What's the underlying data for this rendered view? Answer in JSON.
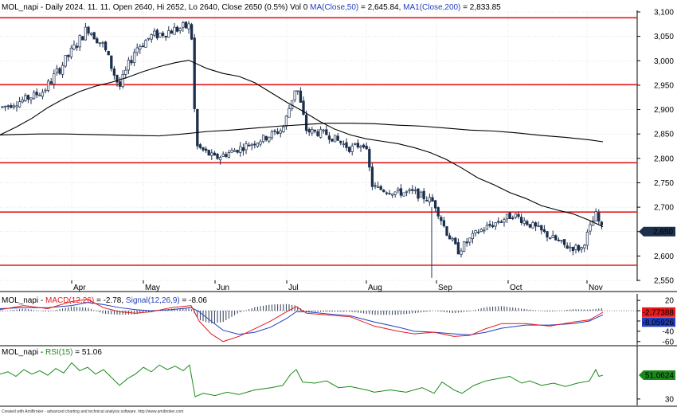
{
  "chart_data": [
    {
      "type": "candlestick",
      "pane": "price",
      "header": {
        "symbol": "MOL_napi",
        "info": " - Daily 2024. 11. 11. Open 2640, Hi 2652, Lo 2640, Close 2650 (0.5%) Vol 0 ",
        "ma50_label": "MA(Close,50)",
        "ma50_value": " = 2,645.84, ",
        "ma200_label": "MA1(Close,200)",
        "ma200_value": " = 2,833.85"
      },
      "y_ticks": [
        "3,100",
        "3,050",
        "3,000",
        "2,950",
        "2,900",
        "2,850",
        "2,800",
        "2,750",
        "2,700",
        "2,650",
        "2,600",
        "2,550"
      ],
      "ylim": [
        2550,
        3100
      ],
      "month_labels": [
        "Apr",
        "May",
        "Jun",
        "Jul",
        "Aug",
        "Sep",
        "Oct",
        "Nov"
      ],
      "last_price_label": "2,650",
      "horizontal_levels": [
        3088,
        2951,
        2791,
        2690,
        2581
      ],
      "ma50_points": [
        [
          0,
          2848
        ],
        [
          20,
          2864
        ],
        [
          40,
          2882
        ],
        [
          60,
          2904
        ],
        [
          80,
          2922
        ],
        [
          100,
          2937
        ],
        [
          120,
          2948
        ],
        [
          140,
          2956
        ],
        [
          160,
          2966
        ],
        [
          180,
          2978
        ],
        [
          200,
          2988
        ],
        [
          220,
          2996
        ],
        [
          237,
          3001
        ],
        [
          260,
          2984
        ],
        [
          280,
          2974
        ],
        [
          300,
          2968
        ],
        [
          320,
          2955
        ],
        [
          340,
          2935
        ],
        [
          360,
          2915
        ],
        [
          380,
          2897
        ],
        [
          400,
          2877
        ],
        [
          420,
          2860
        ],
        [
          440,
          2848
        ],
        [
          460,
          2840
        ],
        [
          480,
          2835
        ],
        [
          500,
          2830
        ],
        [
          520,
          2822
        ],
        [
          540,
          2812
        ],
        [
          560,
          2798
        ],
        [
          580,
          2780
        ],
        [
          600,
          2760
        ],
        [
          620,
          2746
        ],
        [
          640,
          2730
        ],
        [
          660,
          2718
        ],
        [
          680,
          2703
        ],
        [
          700,
          2694
        ],
        [
          720,
          2686
        ],
        [
          740,
          2673
        ],
        [
          757,
          2660
        ]
      ],
      "ma200_points": [
        [
          0,
          2848
        ],
        [
          20,
          2849
        ],
        [
          50,
          2850
        ],
        [
          80,
          2850
        ],
        [
          110,
          2849
        ],
        [
          140,
          2848
        ],
        [
          170,
          2847
        ],
        [
          200,
          2846
        ],
        [
          230,
          2850
        ],
        [
          260,
          2855
        ],
        [
          290,
          2858
        ],
        [
          320,
          2862
        ],
        [
          350,
          2866
        ],
        [
          380,
          2869
        ],
        [
          410,
          2872
        ],
        [
          440,
          2872
        ],
        [
          470,
          2871
        ],
        [
          500,
          2868
        ],
        [
          530,
          2866
        ],
        [
          560,
          2862
        ],
        [
          590,
          2858
        ],
        [
          620,
          2856
        ],
        [
          650,
          2852
        ],
        [
          680,
          2847
        ],
        [
          710,
          2843
        ],
        [
          740,
          2838
        ],
        [
          757,
          2834
        ]
      ],
      "candles_seed": 7,
      "candles_anchors": [
        [
          3,
          2905
        ],
        [
          30,
          2920
        ],
        [
          55,
          2938
        ],
        [
          80,
          2996
        ],
        [
          95,
          3031
        ],
        [
          110,
          3068
        ],
        [
          130,
          3030
        ],
        [
          150,
          2945
        ],
        [
          170,
          3025
        ],
        [
          190,
          3050
        ],
        [
          215,
          3062
        ],
        [
          240,
          3072
        ],
        [
          246,
          2826
        ],
        [
          270,
          2800
        ],
        [
          300,
          2820
        ],
        [
          330,
          2840
        ],
        [
          355,
          2860
        ],
        [
          372,
          2951
        ],
        [
          385,
          2856
        ],
        [
          410,
          2850
        ],
        [
          440,
          2820
        ],
        [
          458,
          2832
        ],
        [
          468,
          2740
        ],
        [
          500,
          2730
        ],
        [
          520,
          2730
        ],
        [
          545,
          2710
        ],
        [
          560,
          2651
        ],
        [
          575,
          2610
        ],
        [
          600,
          2650
        ],
        [
          625,
          2670
        ],
        [
          645,
          2685
        ],
        [
          660,
          2670
        ],
        [
          690,
          2640
        ],
        [
          710,
          2620
        ],
        [
          730,
          2615
        ],
        [
          748,
          2685
        ],
        [
          757,
          2650
        ]
      ]
    },
    {
      "type": "macd",
      "pane": "macd",
      "header": {
        "symbol": "MOL_napi",
        "macd_label": "MACD(12,26)",
        "macd_value": " = -2.78, ",
        "signal_label": "Signal(12,26,9)",
        "signal_value": " = -8.06"
      },
      "y_ticks": [
        "20",
        "0",
        "-20",
        "-40",
        "-60"
      ],
      "ylim": [
        -65,
        28
      ],
      "value_labels": [
        "-2.77388",
        "-8.05926"
      ],
      "macd_points": [
        [
          0,
          2
        ],
        [
          30,
          10
        ],
        [
          60,
          4
        ],
        [
          90,
          18
        ],
        [
          110,
          22
        ],
        [
          130,
          6
        ],
        [
          150,
          -2
        ],
        [
          170,
          -5
        ],
        [
          190,
          -2
        ],
        [
          215,
          6
        ],
        [
          240,
          10
        ],
        [
          250,
          -20
        ],
        [
          265,
          -45
        ],
        [
          280,
          -60
        ],
        [
          300,
          -50
        ],
        [
          320,
          -35
        ],
        [
          340,
          -20
        ],
        [
          360,
          -2
        ],
        [
          372,
          8
        ],
        [
          385,
          -5
        ],
        [
          410,
          -8
        ],
        [
          440,
          -12
        ],
        [
          470,
          -30
        ],
        [
          500,
          -40
        ],
        [
          520,
          -45
        ],
        [
          545,
          -42
        ],
        [
          570,
          -50
        ],
        [
          590,
          -48
        ],
        [
          610,
          -35
        ],
        [
          630,
          -25
        ],
        [
          660,
          -25
        ],
        [
          690,
          -30
        ],
        [
          720,
          -22
        ],
        [
          740,
          -18
        ],
        [
          757,
          -3
        ]
      ],
      "signal_points": [
        [
          0,
          4
        ],
        [
          30,
          6
        ],
        [
          60,
          6
        ],
        [
          90,
          10
        ],
        [
          110,
          16
        ],
        [
          130,
          12
        ],
        [
          150,
          6
        ],
        [
          170,
          2
        ],
        [
          190,
          0
        ],
        [
          215,
          2
        ],
        [
          240,
          6
        ],
        [
          250,
          -2
        ],
        [
          265,
          -20
        ],
        [
          280,
          -38
        ],
        [
          300,
          -46
        ],
        [
          320,
          -42
        ],
        [
          340,
          -32
        ],
        [
          360,
          -15
        ],
        [
          372,
          -2
        ],
        [
          385,
          -2
        ],
        [
          410,
          -6
        ],
        [
          440,
          -10
        ],
        [
          470,
          -22
        ],
        [
          500,
          -32
        ],
        [
          520,
          -40
        ],
        [
          545,
          -42
        ],
        [
          570,
          -45
        ],
        [
          590,
          -47
        ],
        [
          610,
          -42
        ],
        [
          630,
          -34
        ],
        [
          660,
          -28
        ],
        [
          690,
          -28
        ],
        [
          720,
          -25
        ],
        [
          740,
          -20
        ],
        [
          757,
          -8
        ]
      ],
      "macd_color": "#e31a1c",
      "signal_color": "#1f3fbf"
    },
    {
      "type": "line",
      "pane": "rsi",
      "header": {
        "symbol": "MOL_napi",
        "rsi_label": "RSI(15)",
        "rsi_value": " = 51.06"
      },
      "y_ticks": [
        "30"
      ],
      "ylim": [
        25,
        75
      ],
      "value_label": "51.0624",
      "color": "#1a8a1a",
      "points": [
        [
          0,
          52
        ],
        [
          10,
          54
        ],
        [
          20,
          50
        ],
        [
          30,
          56
        ],
        [
          40,
          52
        ],
        [
          50,
          55
        ],
        [
          60,
          51
        ],
        [
          70,
          57
        ],
        [
          80,
          53
        ],
        [
          90,
          62
        ],
        [
          100,
          55
        ],
        [
          110,
          58
        ],
        [
          120,
          52
        ],
        [
          130,
          56
        ],
        [
          150,
          42
        ],
        [
          160,
          48
        ],
        [
          170,
          52
        ],
        [
          180,
          58
        ],
        [
          190,
          54
        ],
        [
          200,
          60
        ],
        [
          210,
          56
        ],
        [
          220,
          59
        ],
        [
          230,
          55
        ],
        [
          238,
          60
        ],
        [
          245,
          32
        ],
        [
          255,
          35
        ],
        [
          270,
          33
        ],
        [
          285,
          36
        ],
        [
          300,
          34
        ],
        [
          320,
          38
        ],
        [
          340,
          40
        ],
        [
          355,
          42
        ],
        [
          365,
          52
        ],
        [
          372,
          56
        ],
        [
          380,
          45
        ],
        [
          395,
          44
        ],
        [
          410,
          46
        ],
        [
          425,
          40
        ],
        [
          440,
          41
        ],
        [
          460,
          38
        ],
        [
          470,
          36
        ],
        [
          490,
          38
        ],
        [
          510,
          36
        ],
        [
          530,
          40
        ],
        [
          545,
          35
        ],
        [
          555,
          45
        ],
        [
          570,
          38
        ],
        [
          580,
          35
        ],
        [
          595,
          42
        ],
        [
          610,
          46
        ],
        [
          625,
          48
        ],
        [
          640,
          50
        ],
        [
          655,
          44
        ],
        [
          665,
          46
        ],
        [
          680,
          42
        ],
        [
          695,
          44
        ],
        [
          710,
          41
        ],
        [
          725,
          44
        ],
        [
          740,
          46
        ],
        [
          748,
          56
        ],
        [
          752,
          50
        ],
        [
          757,
          51
        ]
      ]
    }
  ],
  "footer": "Created with AmiBroker - advanced charting and technical analysis software. http://www.amibroker.com",
  "colors": {
    "level_line": "#e31a1c",
    "ma_line": "#000000",
    "candle_up": "#ffffff",
    "candle_down": "#1c2f4d",
    "candle_outline": "#1c2f4d",
    "grid": "#c8c8c8",
    "price_badge": "#1c2f4d",
    "macd_badge_1": "#e31a1c",
    "macd_badge_2": "#1f3fbf",
    "rsi_badge": "#1a8a1a"
  }
}
